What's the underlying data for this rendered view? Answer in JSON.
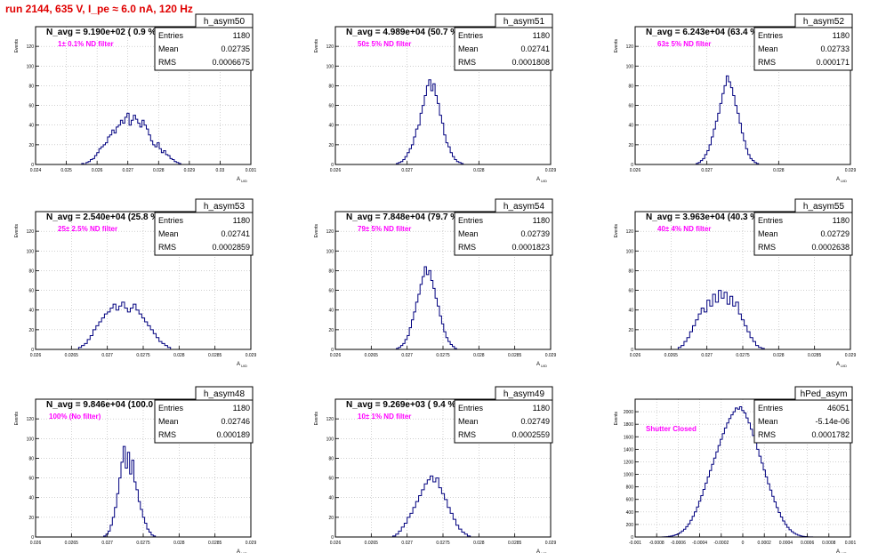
{
  "run_title": "run 2144,   635 V, I_pe ≈ 6.0 nA, 120 Hz",
  "stats_labels": {
    "entries": "Entries",
    "mean": "Mean",
    "rms": "RMS"
  },
  "ylabel": "Events",
  "xlabel": "A",
  "xlabel_sub": "U/D",
  "colors": {
    "line": "#00007f",
    "frame": "#000000",
    "grid": "#b4b4b4",
    "magenta": "#ff00ff",
    "title_red": "#e00000"
  },
  "chart_data": [
    {
      "type": "bar",
      "hist": "h_asym50",
      "title": "h_asym50",
      "nlabel": "N_avg = 9.190e+02 ( 0.9 %)",
      "filter": "1± 0.1% ND filter",
      "entries": "1180",
      "mean": "0.02735",
      "rms": "0.0006675",
      "xlim": [
        0.024,
        0.031
      ],
      "ylim": [
        0,
        140
      ],
      "xticks": [
        "0.024",
        "0.025",
        "0.026",
        "0.027",
        "0.028",
        "0.029",
        "0.03",
        "0.031"
      ],
      "yticks": [
        "0",
        "20",
        "40",
        "60",
        "80",
        "100",
        "120"
      ],
      "bins": {
        "start": 0.0255,
        "width": 7e-05,
        "counts": [
          1,
          0,
          2,
          3,
          5,
          6,
          9,
          12,
          16,
          18,
          20,
          22,
          28,
          30,
          35,
          32,
          38,
          40,
          45,
          42,
          48,
          52,
          40,
          45,
          50,
          46,
          42,
          38,
          45,
          40,
          36,
          30,
          24,
          20,
          18,
          22,
          16,
          12,
          14,
          10,
          9,
          6,
          5,
          3,
          2,
          1
        ]
      }
    },
    {
      "type": "bar",
      "hist": "h_asym51",
      "title": "h_asym51",
      "nlabel": "N_avg = 4.989e+04 (50.7 %)",
      "filter": "50± 5% ND filter",
      "entries": "1180",
      "mean": "0.02741",
      "rms": "0.0001808",
      "xlim": [
        0.026,
        0.029
      ],
      "ylim": [
        0,
        140
      ],
      "xticks": [
        "0.026",
        "0.027",
        "0.028",
        "0.029"
      ],
      "yticks": [
        "0",
        "20",
        "40",
        "60",
        "80",
        "100",
        "120"
      ],
      "bins": {
        "start": 0.02685,
        "width": 3e-05,
        "counts": [
          1,
          2,
          3,
          5,
          8,
          12,
          16,
          20,
          28,
          36,
          40,
          52,
          60,
          70,
          80,
          86,
          75,
          82,
          70,
          62,
          50,
          42,
          30,
          22,
          18,
          12,
          8,
          5,
          3,
          2,
          1
        ]
      }
    },
    {
      "type": "bar",
      "hist": "h_asym52",
      "title": "h_asym52",
      "nlabel": "N_avg = 6.243e+04 (63.4 %)",
      "filter": "63± 5% ND filter",
      "entries": "1180",
      "mean": "0.02733",
      "rms": "0.000171",
      "xlim": [
        0.026,
        0.029
      ],
      "ylim": [
        0,
        140
      ],
      "xticks": [
        "0.026",
        "0.027",
        "0.028",
        "0.029"
      ],
      "yticks": [
        "0",
        "20",
        "40",
        "60",
        "80",
        "100",
        "120"
      ],
      "bins": {
        "start": 0.02685,
        "width": 3e-05,
        "counts": [
          1,
          2,
          4,
          6,
          10,
          14,
          20,
          28,
          36,
          44,
          52,
          62,
          72,
          80,
          90,
          84,
          78,
          70,
          60,
          52,
          42,
          32,
          24,
          16,
          10,
          6,
          4,
          2,
          1
        ]
      }
    },
    {
      "type": "bar",
      "hist": "h_asym53",
      "title": "h_asym53",
      "nlabel": "N_avg = 2.540e+04 (25.8 %)",
      "filter": "25± 2.5% ND filter",
      "entries": "1180",
      "mean": "0.02741",
      "rms": "0.0002859",
      "xlim": [
        0.026,
        0.029
      ],
      "ylim": [
        0,
        140
      ],
      "xticks": [
        "0.026",
        "0.0265",
        "0.027",
        "0.0275",
        "0.028",
        "0.0285",
        "0.029"
      ],
      "yticks": [
        "0",
        "20",
        "40",
        "60",
        "80",
        "100",
        "120"
      ],
      "bins": {
        "start": 0.0266,
        "width": 4e-05,
        "counts": [
          2,
          4,
          6,
          10,
          14,
          20,
          24,
          28,
          32,
          36,
          38,
          42,
          46,
          40,
          44,
          48,
          42,
          38,
          42,
          46,
          40,
          36,
          32,
          28,
          24,
          20,
          16,
          12,
          8,
          6,
          4,
          2
        ]
      }
    },
    {
      "type": "bar",
      "hist": "h_asym54",
      "title": "h_asym54",
      "nlabel": "N_avg = 7.848e+04 (79.7 %)",
      "filter": "79± 5% ND filter",
      "entries": "1180",
      "mean": "0.02739",
      "rms": "0.0001823",
      "xlim": [
        0.026,
        0.029
      ],
      "ylim": [
        0,
        140
      ],
      "xticks": [
        "0.026",
        "0.0265",
        "0.027",
        "0.0275",
        "0.028",
        "0.0285",
        "0.029"
      ],
      "yticks": [
        "0",
        "20",
        "40",
        "60",
        "80",
        "100",
        "120"
      ],
      "bins": {
        "start": 0.02685,
        "width": 3e-05,
        "counts": [
          1,
          2,
          4,
          6,
          10,
          14,
          22,
          30,
          38,
          48,
          56,
          66,
          74,
          84,
          76,
          80,
          70,
          62,
          52,
          44,
          34,
          26,
          18,
          12,
          8,
          5,
          3,
          1
        ]
      }
    },
    {
      "type": "bar",
      "hist": "h_asym55",
      "title": "h_asym55",
      "nlabel": "N_avg = 3.963e+04 (40.3 %)",
      "filter": "40± 4% ND filter",
      "entries": "1180",
      "mean": "0.02729",
      "rms": "0.0002638",
      "xlim": [
        0.026,
        0.029
      ],
      "ylim": [
        0,
        140
      ],
      "xticks": [
        "0.026",
        "0.0265",
        "0.027",
        "0.0275",
        "0.028",
        "0.0285",
        "0.029"
      ],
      "yticks": [
        "0",
        "20",
        "40",
        "60",
        "80",
        "100",
        "120"
      ],
      "bins": {
        "start": 0.0266,
        "width": 4e-05,
        "counts": [
          2,
          4,
          8,
          12,
          18,
          24,
          30,
          36,
          42,
          38,
          50,
          44,
          56,
          48,
          60,
          52,
          58,
          46,
          54,
          44,
          48,
          36,
          30,
          24,
          18,
          12,
          8,
          4,
          2,
          1
        ]
      }
    },
    {
      "type": "bar",
      "hist": "h_asym48",
      "title": "h_asym48",
      "nlabel": "N_avg = 9.846e+04 (100.0 %)",
      "filter": "100% (No filter)",
      "entries": "1180",
      "mean": "0.02746",
      "rms": "0.000189",
      "xlim": [
        0.026,
        0.029
      ],
      "ylim": [
        0,
        140
      ],
      "xticks": [
        "0.026",
        "0.0265",
        "0.027",
        "0.0275",
        "0.028",
        "0.0285",
        "0.029"
      ],
      "yticks": [
        "0",
        "20",
        "40",
        "60",
        "80",
        "100",
        "120"
      ],
      "bins": {
        "start": 0.02695,
        "width": 3e-05,
        "counts": [
          1,
          3,
          6,
          12,
          20,
          30,
          44,
          60,
          76,
          92,
          70,
          86,
          64,
          78,
          56,
          48,
          36,
          28,
          20,
          14,
          8,
          5,
          2,
          1
        ]
      }
    },
    {
      "type": "bar",
      "hist": "h_asym49",
      "title": "h_asym49",
      "nlabel": "N_avg = 9.269e+03 ( 9.4 %)",
      "filter": "10± 1% ND filter",
      "entries": "1180",
      "mean": "0.02749",
      "rms": "0.0002559",
      "xlim": [
        0.026,
        0.029
      ],
      "ylim": [
        0,
        140
      ],
      "xticks": [
        "0.026",
        "0.0265",
        "0.027",
        "0.0275",
        "0.028",
        "0.0285",
        "0.029"
      ],
      "yticks": [
        "0",
        "20",
        "40",
        "60",
        "80",
        "100",
        "120"
      ],
      "bins": {
        "start": 0.0268,
        "width": 4e-05,
        "counts": [
          1,
          3,
          6,
          10,
          14,
          20,
          24,
          30,
          36,
          42,
          48,
          54,
          58,
          62,
          56,
          60,
          50,
          44,
          38,
          30,
          24,
          18,
          12,
          8,
          5,
          3,
          1
        ]
      }
    },
    {
      "type": "bar",
      "hist": "hPed_asym",
      "title": "hPed_asym",
      "nlabel": "",
      "filter": "Shutter Closed",
      "entries": "46051",
      "mean": "-5.14e-06",
      "rms": "0.0001782",
      "xlim": [
        -0.001,
        0.001
      ],
      "ylim": [
        0,
        2200
      ],
      "xticks": [
        "-0.001",
        "-0.0008",
        "-0.0006",
        "-0.0004",
        "-0.0002",
        "0",
        "0.0002",
        "0.0004",
        "0.0006",
        "0.0008",
        "0.001"
      ],
      "yticks": [
        "0",
        "200",
        "400",
        "600",
        "800",
        "1000",
        "1200",
        "1400",
        "1600",
        "1800",
        "2000"
      ],
      "bins": {
        "start": -0.00075,
        "width": 2e-05,
        "counts": [
          2,
          4,
          6,
          10,
          16,
          24,
          36,
          50,
          70,
          95,
          125,
          165,
          210,
          265,
          330,
          400,
          480,
          570,
          660,
          760,
          860,
          960,
          1060,
          1160,
          1260,
          1360,
          1460,
          1560,
          1650,
          1740,
          1820,
          1890,
          1950,
          2000,
          2060,
          2040,
          2080,
          2020,
          1980,
          1900,
          1820,
          1720,
          1620,
          1510,
          1400,
          1290,
          1180,
          1070,
          960,
          850,
          750,
          650,
          560,
          470,
          390,
          320,
          255,
          200,
          155,
          115,
          85,
          60,
          42,
          28,
          18,
          12,
          7,
          4,
          2,
          1
        ]
      }
    }
  ]
}
